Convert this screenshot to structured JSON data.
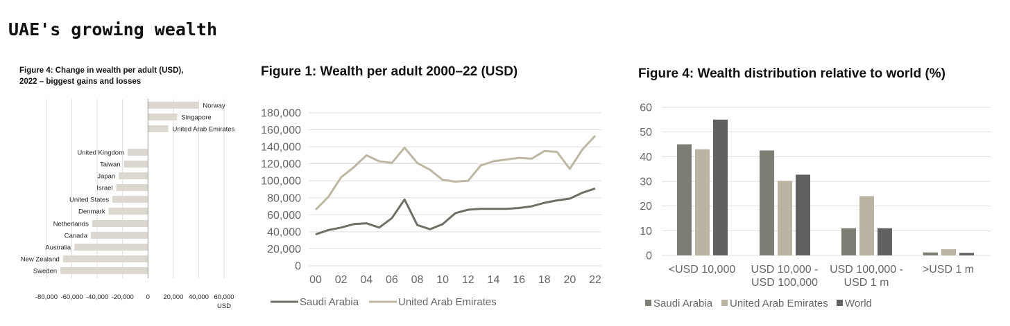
{
  "page_title": "UAE's growing wealth",
  "chart_data": [
    {
      "type": "bar",
      "orientation": "horizontal",
      "title_lines": [
        "Figure 4: Change in wealth per adult (USD),",
        "2022 – biggest gains and losses"
      ],
      "categories": [
        "Norway",
        "Singapore",
        "United Arab Emirates",
        "United Kingdom",
        "Taiwan",
        "Japan",
        "Israel",
        "United States",
        "Denmark",
        "Netherlands",
        "Canada",
        "Australia",
        "New Zealand",
        "Sweden"
      ],
      "values": [
        40000,
        23000,
        16000,
        -16000,
        -19000,
        -23000,
        -25000,
        -28000,
        -31000,
        -44000,
        -45000,
        -58000,
        -67000,
        -69000
      ],
      "xticks": [
        -80000,
        -60000,
        -40000,
        -20000,
        0,
        20000,
        40000,
        60000
      ],
      "xtick_labels": [
        "-80,000",
        "-60,000",
        "-40,000",
        "-20,000",
        "0",
        "20,000",
        "40,000",
        "60,000"
      ],
      "xlabel": "USD",
      "xlim": [
        -80000,
        60000
      ],
      "color": "#dcd8d0"
    },
    {
      "type": "line",
      "title": "Figure 1: Wealth per adult 2000–22 (USD)",
      "x": [
        0,
        1,
        2,
        3,
        4,
        5,
        6,
        7,
        8,
        9,
        10,
        11,
        12,
        13,
        14,
        15,
        16,
        17,
        18,
        19,
        20,
        21,
        22
      ],
      "xtick_labels": [
        "00",
        "02",
        "04",
        "06",
        "08",
        "10",
        "12",
        "14",
        "16",
        "18",
        "20",
        "22"
      ],
      "ylim": [
        0,
        180000
      ],
      "yticks": [
        0,
        20000,
        40000,
        60000,
        80000,
        100000,
        120000,
        140000,
        160000,
        180000
      ],
      "ytick_labels": [
        "0",
        "20,000",
        "40,000",
        "60,000",
        "80,000",
        "100,000",
        "120,000",
        "140,000",
        "160,000",
        "180,000"
      ],
      "series": [
        {
          "name": "Saudi Arabia",
          "color": "#6f6f66",
          "values": [
            37000,
            42000,
            45000,
            49000,
            50000,
            45000,
            56000,
            78000,
            48000,
            43000,
            49000,
            62000,
            66000,
            67000,
            67000,
            67000,
            68000,
            70000,
            74000,
            77000,
            79000,
            86000,
            91000
          ]
        },
        {
          "name": "United Arab Emirates",
          "color": "#bdb7a3",
          "values": [
            66000,
            81000,
            104000,
            116000,
            130000,
            123000,
            121000,
            139000,
            121000,
            113000,
            101000,
            99000,
            100000,
            118000,
            123000,
            125000,
            127000,
            126000,
            135000,
            134000,
            114000,
            137000,
            153000
          ]
        }
      ],
      "legend": [
        "Saudi Arabia",
        "United Arab Emirates"
      ]
    },
    {
      "type": "bar",
      "title": "Figure 4: Wealth distribution relative to world (%)",
      "categories": [
        [
          "<USD 10,000"
        ],
        [
          "USD 10,000 -",
          "USD 100,000"
        ],
        [
          "USD 100,000 -",
          "USD 1 m"
        ],
        [
          ">USD 1 m"
        ]
      ],
      "ylim": [
        0,
        60
      ],
      "yticks": [
        0,
        10,
        20,
        30,
        40,
        50,
        60
      ],
      "series": [
        {
          "name": "Saudi Arabia",
          "color": "#7d7d73",
          "values": [
            45,
            42.5,
            11,
            1.2
          ]
        },
        {
          "name": "United Arab Emirates",
          "color": "#bab4a2",
          "values": [
            43,
            30.2,
            24,
            2.5
          ]
        },
        {
          "name": "World",
          "color": "#616160",
          "values": [
            55,
            32.7,
            11,
            1
          ]
        }
      ],
      "legend": [
        "Saudi Arabia",
        "United Arab Emirates",
        "World"
      ]
    }
  ]
}
